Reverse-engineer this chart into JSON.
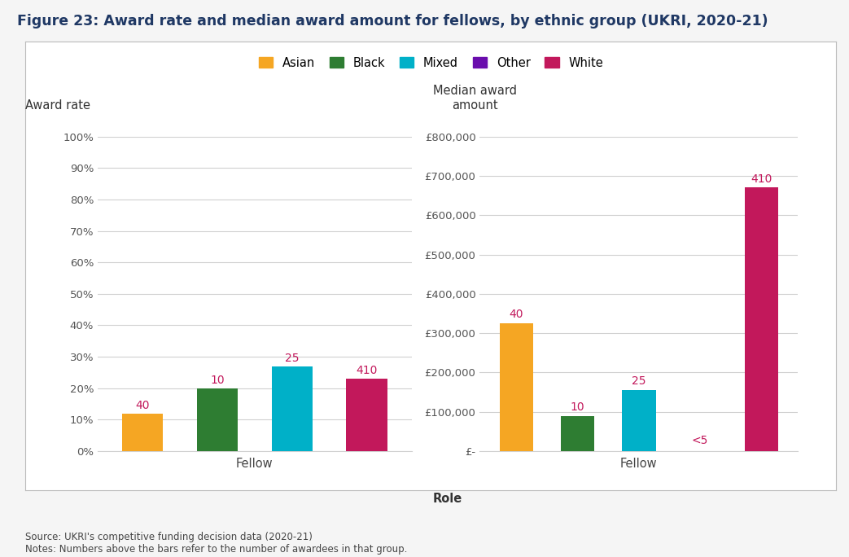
{
  "title": "Figure 23: Award rate and median award amount for fellows, by ethnic group (UKRI, 2020-21)",
  "title_color": "#1f3864",
  "background_color": "#f5f5f5",
  "panel_background": "#ffffff",
  "panel_border_color": "#bbbbbb",
  "categories": [
    "Asian",
    "Black",
    "Mixed",
    "Other",
    "White"
  ],
  "colors": [
    "#f5a623",
    "#2e7d32",
    "#00b0c8",
    "#6a0dad",
    "#c2185b"
  ],
  "left_chart": {
    "award_rate_label": "Award rate",
    "xlabel": "Fellow",
    "ytick_labels": [
      "0%",
      "10%",
      "20%",
      "30%",
      "40%",
      "50%",
      "60%",
      "70%",
      "80%",
      "90%",
      "100%"
    ],
    "ytick_values": [
      0,
      10,
      20,
      30,
      40,
      50,
      60,
      70,
      80,
      90,
      100
    ],
    "ylim": [
      0,
      100
    ],
    "bars": {
      "Asian": {
        "value": 12,
        "label": "40"
      },
      "Black": {
        "value": 20,
        "label": "10"
      },
      "Mixed": {
        "value": 27,
        "label": "25"
      },
      "Other": {
        "value": null,
        "label": null
      },
      "White": {
        "value": 23,
        "label": "410"
      }
    }
  },
  "right_chart": {
    "median_label_line1": "Median award",
    "median_label_line2": "amount",
    "xlabel": "Fellow",
    "role_label": "Role",
    "ytick_labels": [
      "£-",
      "£100,000",
      "£200,000",
      "£300,000",
      "£400,000",
      "£500,000",
      "£600,000",
      "£700,000",
      "£800,000"
    ],
    "ytick_values": [
      0,
      100000,
      200000,
      300000,
      400000,
      500000,
      600000,
      700000,
      800000
    ],
    "ylim": [
      0,
      800000
    ],
    "bars": {
      "Asian": {
        "value": 325000,
        "label": "40"
      },
      "Black": {
        "value": 90000,
        "label": "10"
      },
      "Mixed": {
        "value": 155000,
        "label": "25"
      },
      "Other": {
        "value": null,
        "label": "<5"
      },
      "White": {
        "value": 670000,
        "label": "410"
      }
    }
  },
  "legend_order": [
    "Asian",
    "Black",
    "Mixed",
    "Other",
    "White"
  ],
  "label_color": "#c2185b",
  "grid_color": "#d0d0d0",
  "tick_color": "#555555",
  "source_text": "Source: UKRI's competitive funding decision data (2020-21)\nNotes: Numbers above the bars refer to the number of awardees in that group."
}
